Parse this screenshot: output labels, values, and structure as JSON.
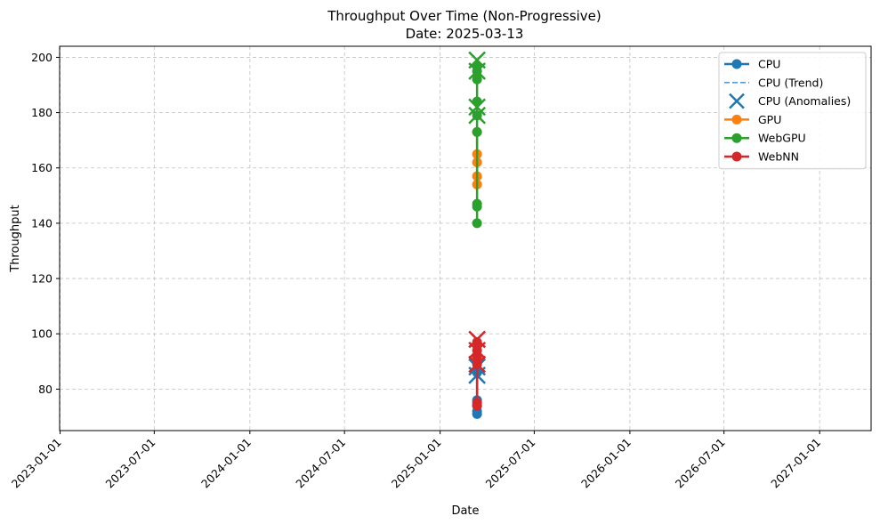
{
  "chart_data": {
    "type": "line",
    "title": "Throughput Over Time (Non-Progressive)",
    "subtitle": "Date: 2025-03-13",
    "xlabel": "Date",
    "ylabel": "Throughput",
    "x_ticks": [
      "2023-01-01",
      "2023-07-01",
      "2024-01-01",
      "2024-07-01",
      "2025-01-01",
      "2025-07-01",
      "2026-01-01",
      "2026-07-01",
      "2027-01-01"
    ],
    "xlim": [
      "2022-12-31",
      "2027-04-10"
    ],
    "y_ticks": [
      80,
      100,
      120,
      140,
      160,
      180,
      200
    ],
    "ylim": [
      65,
      204
    ],
    "grid": true,
    "legend_position": "top-right",
    "date": "2025-03-13",
    "series": [
      {
        "name": "CPU",
        "kind": "line-marker",
        "color": "#1f77b4",
        "x": [
          "2025-03-13",
          "2025-03-13",
          "2025-03-13",
          "2025-03-13",
          "2025-03-13",
          "2025-03-13"
        ],
        "y": [
          71,
          72,
          74,
          76,
          86,
          87
        ]
      },
      {
        "name": "CPU (Trend)",
        "kind": "dashed-line",
        "color": "#5b9bd5",
        "x": [
          "2025-03-13",
          "2025-03-13"
        ],
        "y": [
          72,
          88
        ]
      },
      {
        "name": "CPU (Anomalies)",
        "kind": "x-marker",
        "color": "#1f77b4",
        "x": [
          "2025-03-13",
          "2025-03-13"
        ],
        "y": [
          85,
          88
        ]
      },
      {
        "name": "GPU",
        "kind": "line-marker",
        "color": "#ff7f0e",
        "x": [
          "2025-03-13",
          "2025-03-13",
          "2025-03-13",
          "2025-03-13",
          "2025-03-13"
        ],
        "y": [
          154,
          157,
          162,
          165,
          173
        ]
      },
      {
        "name": "WebGPU",
        "kind": "line-marker",
        "color": "#2ca02c",
        "x": [
          "2025-03-13",
          "2025-03-13",
          "2025-03-13",
          "2025-03-13",
          "2025-03-13",
          "2025-03-13",
          "2025-03-13",
          "2025-03-13",
          "2025-03-13"
        ],
        "y": [
          140,
          146,
          147,
          173,
          179,
          184,
          192,
          195,
          197
        ],
        "anomalies": [
          179,
          182,
          195,
          199
        ]
      },
      {
        "name": "WebNN",
        "kind": "line-marker",
        "color": "#d62728",
        "x": [
          "2025-03-13",
          "2025-03-13",
          "2025-03-13",
          "2025-03-13",
          "2025-03-13",
          "2025-03-13"
        ],
        "y": [
          74,
          75,
          89,
          92,
          94,
          97
        ],
        "anomalies": [
          89,
          94,
          98
        ]
      }
    ]
  }
}
